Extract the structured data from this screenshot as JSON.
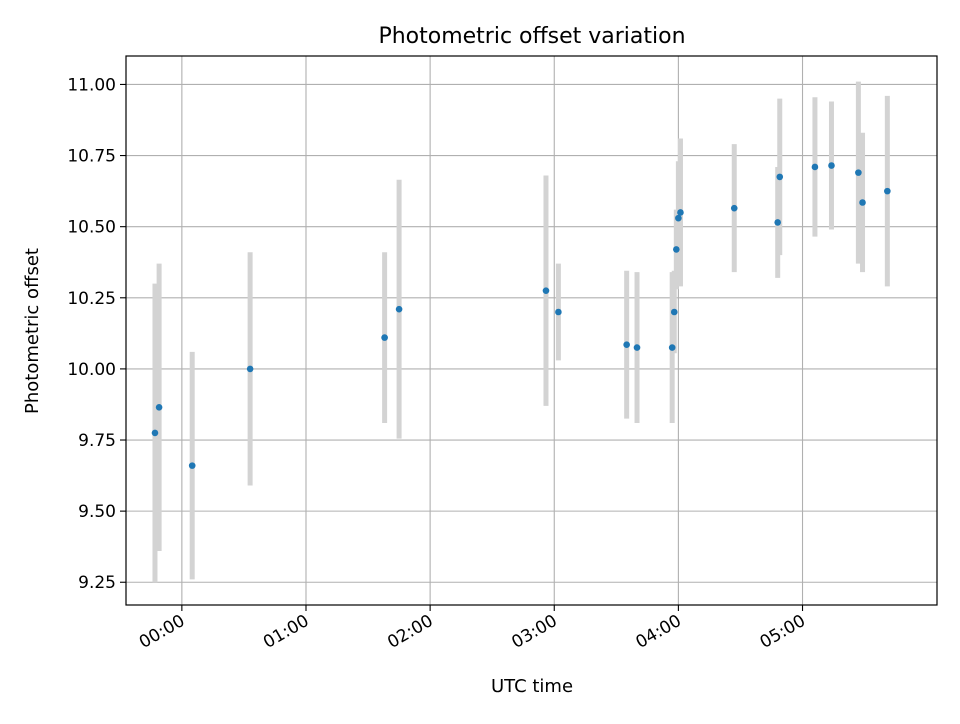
{
  "chart_data": {
    "type": "scatter",
    "title": "Photometric offset variation",
    "xlabel": "UTC time",
    "ylabel": "Photometric offset",
    "x_tick_labels": [
      "00:00",
      "01:00",
      "02:00",
      "03:00",
      "04:00",
      "05:00"
    ],
    "x_tick_minutes": [
      0,
      60,
      120,
      180,
      240,
      300
    ],
    "y_tick_labels": [
      "9.25",
      "9.50",
      "9.75",
      "10.00",
      "10.25",
      "10.50",
      "10.75",
      "11.00"
    ],
    "y_tick_values": [
      9.25,
      9.5,
      9.75,
      10.0,
      10.25,
      10.5,
      10.75,
      11.0
    ],
    "xlim": [
      "23:33",
      "06:05"
    ],
    "ylim": [
      9.17,
      11.1
    ],
    "grid": true,
    "marker_color": "#1f77b4",
    "errorbar_color": "#d3d3d3",
    "points": [
      {
        "x": "23:47",
        "y": 9.775,
        "err": 0.525
      },
      {
        "x": "23:49",
        "y": 9.865,
        "err": 0.505
      },
      {
        "x": "00:05",
        "y": 9.66,
        "err": 0.4
      },
      {
        "x": "00:33",
        "y": 10.0,
        "err": 0.41
      },
      {
        "x": "01:38",
        "y": 10.11,
        "err": 0.3
      },
      {
        "x": "01:45",
        "y": 10.21,
        "err": 0.455
      },
      {
        "x": "02:56",
        "y": 10.275,
        "err": 0.405
      },
      {
        "x": "03:02",
        "y": 10.2,
        "err": 0.17
      },
      {
        "x": "03:35",
        "y": 10.085,
        "err": 0.26
      },
      {
        "x": "03:40",
        "y": 10.075,
        "err": 0.265
      },
      {
        "x": "03:57",
        "y": 10.075,
        "err": 0.265
      },
      {
        "x": "03:58",
        "y": 10.2,
        "err": 0.145
      },
      {
        "x": "03:59",
        "y": 10.42,
        "err": 0.14
      },
      {
        "x": "04:00",
        "y": 10.53,
        "err": 0.2
      },
      {
        "x": "04:01",
        "y": 10.55,
        "err": 0.26
      },
      {
        "x": "04:27",
        "y": 10.565,
        "err": 0.225
      },
      {
        "x": "04:48",
        "y": 10.515,
        "err": 0.195
      },
      {
        "x": "04:49",
        "y": 10.675,
        "err": 0.275
      },
      {
        "x": "05:06",
        "y": 10.71,
        "err": 0.245
      },
      {
        "x": "05:14",
        "y": 10.715,
        "err": 0.225
      },
      {
        "x": "05:27",
        "y": 10.69,
        "err": 0.32
      },
      {
        "x": "05:29",
        "y": 10.585,
        "err": 0.245
      },
      {
        "x": "05:41",
        "y": 10.625,
        "err": 0.335
      }
    ]
  }
}
